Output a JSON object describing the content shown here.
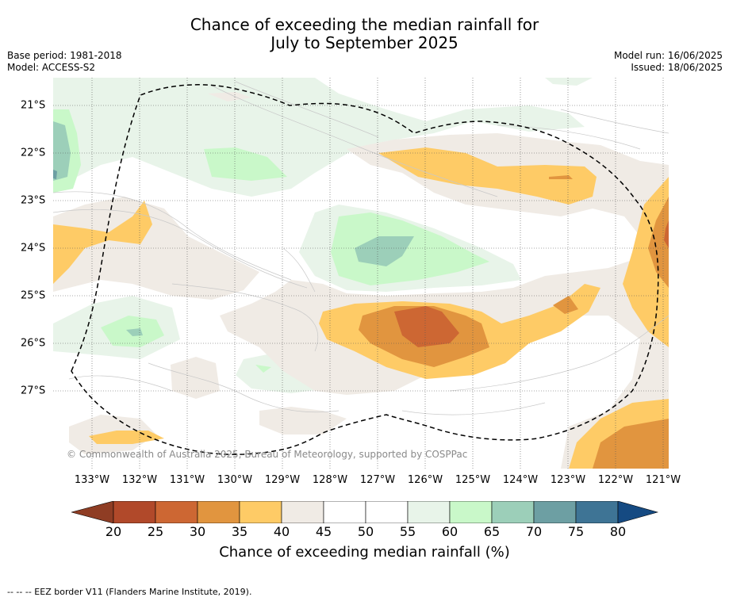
{
  "title": {
    "line1": "Chance of exceeding the median rainfall for",
    "line2": "July to September 2025"
  },
  "meta": {
    "base_period": "Base period: 1981-2018",
    "model": "Model: ACCESS-S2",
    "model_run": "Model run: 16/06/2025",
    "issued": "Issued: 18/06/2025"
  },
  "map": {
    "lon_labels": [
      "133°W",
      "132°W",
      "131°W",
      "130°W",
      "129°W",
      "128°W",
      "127°W",
      "126°W",
      "125°W",
      "124°W",
      "123°W",
      "122°W",
      "121°W"
    ],
    "lat_labels": [
      "21°S",
      "22°S",
      "23°S",
      "24°S",
      "25°S",
      "26°S",
      "27°S"
    ],
    "copyright": "© Commonwealth of Australia 2025, Bureau of Meteorology, supported by COSPPac",
    "colors": {
      "c20_25": "#b1492a",
      "c25_30": "#cd6733",
      "c30_35": "#e1953f",
      "c35_40": "#fecb66",
      "c40_45": "#f0ebe5",
      "c45_55": "#ffffff",
      "c55_60": "#e8f4e9",
      "c60_65": "#c9f8c9",
      "c65_70": "#9ccfb9",
      "c70_75": "#6d9fa3",
      "c75_80": "#3e7495",
      "below20": "#8f3d24",
      "above80": "#154a82"
    }
  },
  "colorbar": {
    "ticks": [
      "20",
      "25",
      "30",
      "35",
      "40",
      "45",
      "50",
      "55",
      "60",
      "65",
      "70",
      "75",
      "80"
    ],
    "label": "Chance of exceeding median rainfall (%)"
  },
  "footer": "--  --  -- EEZ border V11 (Flanders Marine Institute, 2019)."
}
